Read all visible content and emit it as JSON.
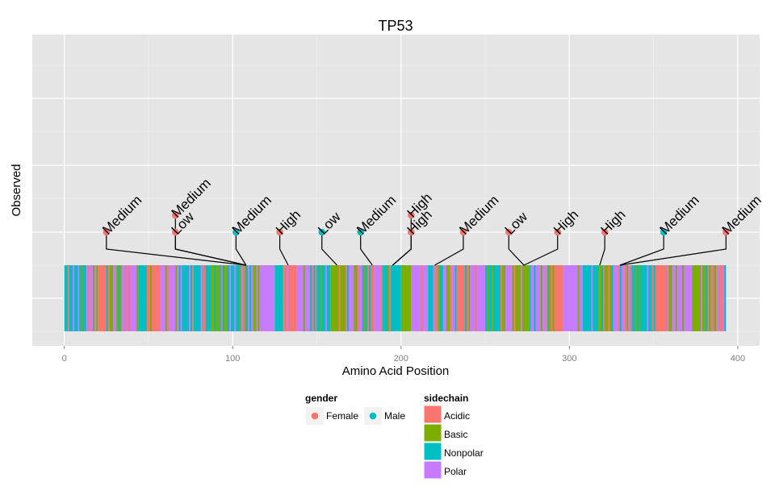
{
  "chart_data": {
    "type": "scatter",
    "title": "TP53",
    "xlabel": "Amino Acid Position",
    "ylabel": "Observed",
    "xlim": [
      -19,
      413
    ],
    "x_ticks": [
      0,
      100,
      200,
      300,
      400
    ],
    "grid": true,
    "protein_length": 393,
    "track_segments": [
      {
        "start": 0,
        "end": 12,
        "sidechain": "Nonpolar"
      },
      {
        "start": 12,
        "end": 20,
        "sidechain": "Polar"
      },
      {
        "start": 20,
        "end": 27,
        "sidechain": "Acidic"
      },
      {
        "start": 27,
        "end": 34,
        "sidechain": "Basic"
      },
      {
        "start": 34,
        "end": 44,
        "sidechain": "Polar"
      },
      {
        "start": 44,
        "end": 50,
        "sidechain": "Nonpolar"
      },
      {
        "start": 50,
        "end": 57,
        "sidechain": "Acidic"
      },
      {
        "start": 57,
        "end": 68,
        "sidechain": "Polar"
      },
      {
        "start": 68,
        "end": 107,
        "sidechain": "Nonpolar"
      },
      {
        "start": 107,
        "end": 112,
        "sidechain": "Polar"
      },
      {
        "start": 112,
        "end": 116,
        "sidechain": "Basic"
      },
      {
        "start": 116,
        "end": 125,
        "sidechain": "Polar"
      },
      {
        "start": 125,
        "end": 130,
        "sidechain": "Nonpolar"
      },
      {
        "start": 130,
        "end": 138,
        "sidechain": "Acidic"
      },
      {
        "start": 138,
        "end": 148,
        "sidechain": "Polar"
      },
      {
        "start": 148,
        "end": 158,
        "sidechain": "Nonpolar"
      },
      {
        "start": 158,
        "end": 168,
        "sidechain": "Basic"
      },
      {
        "start": 168,
        "end": 178,
        "sidechain": "Polar"
      },
      {
        "start": 178,
        "end": 184,
        "sidechain": "Acidic"
      },
      {
        "start": 184,
        "end": 190,
        "sidechain": "Polar"
      },
      {
        "start": 190,
        "end": 200,
        "sidechain": "Nonpolar"
      },
      {
        "start": 200,
        "end": 206,
        "sidechain": "Basic"
      },
      {
        "start": 206,
        "end": 216,
        "sidechain": "Polar"
      },
      {
        "start": 216,
        "end": 225,
        "sidechain": "Nonpolar"
      },
      {
        "start": 225,
        "end": 233,
        "sidechain": "Polar"
      },
      {
        "start": 233,
        "end": 240,
        "sidechain": "Acidic"
      },
      {
        "start": 240,
        "end": 250,
        "sidechain": "Polar"
      },
      {
        "start": 250,
        "end": 260,
        "sidechain": "Nonpolar"
      },
      {
        "start": 260,
        "end": 268,
        "sidechain": "Polar"
      },
      {
        "start": 268,
        "end": 276,
        "sidechain": "Basic"
      },
      {
        "start": 276,
        "end": 286,
        "sidechain": "Polar"
      },
      {
        "start": 286,
        "end": 296,
        "sidechain": "Acidic"
      },
      {
        "start": 296,
        "end": 308,
        "sidechain": "Polar"
      },
      {
        "start": 308,
        "end": 318,
        "sidechain": "Nonpolar"
      },
      {
        "start": 318,
        "end": 326,
        "sidechain": "Basic"
      },
      {
        "start": 326,
        "end": 338,
        "sidechain": "Polar"
      },
      {
        "start": 338,
        "end": 350,
        "sidechain": "Nonpolar"
      },
      {
        "start": 350,
        "end": 360,
        "sidechain": "Acidic"
      },
      {
        "start": 360,
        "end": 372,
        "sidechain": "Polar"
      },
      {
        "start": 372,
        "end": 380,
        "sidechain": "Basic"
      },
      {
        "start": 380,
        "end": 388,
        "sidechain": "Nonpolar"
      },
      {
        "start": 388,
        "end": 393,
        "sidechain": "Polar"
      }
    ],
    "points": [
      {
        "x": 25,
        "level": 1,
        "connect_x": 108,
        "gender": "Female",
        "label": "Medium"
      },
      {
        "x": 66,
        "level": 1,
        "connect_x": 108,
        "gender": "Female",
        "label": "Low"
      },
      {
        "x": 66,
        "level": 2,
        "connect_x": 108,
        "gender": "Female",
        "label": "Medium"
      },
      {
        "x": 102,
        "level": 1,
        "connect_x": 108,
        "gender": "Male",
        "label": "Medium"
      },
      {
        "x": 128,
        "level": 1,
        "connect_x": 133,
        "gender": "Female",
        "label": "High"
      },
      {
        "x": 153,
        "level": 1,
        "connect_x": 162,
        "gender": "Male",
        "label": "Low"
      },
      {
        "x": 176,
        "level": 1,
        "connect_x": 183,
        "gender": "Male",
        "label": "Medium"
      },
      {
        "x": 206,
        "level": 1,
        "connect_x": 195,
        "gender": "Female",
        "label": "High"
      },
      {
        "x": 206,
        "level": 2,
        "connect_x": 195,
        "gender": "Female",
        "label": "High"
      },
      {
        "x": 237,
        "level": 1,
        "connect_x": 220,
        "gender": "Female",
        "label": "Medium"
      },
      {
        "x": 264,
        "level": 1,
        "connect_x": 273,
        "gender": "Female",
        "label": "Low"
      },
      {
        "x": 293,
        "level": 1,
        "connect_x": 273,
        "gender": "Female",
        "label": "High"
      },
      {
        "x": 321,
        "level": 1,
        "connect_x": 318,
        "gender": "Female",
        "label": "High"
      },
      {
        "x": 356,
        "level": 1,
        "connect_x": 330,
        "gender": "Male",
        "label": "Medium"
      },
      {
        "x": 393,
        "level": 1,
        "connect_x": 330,
        "gender": "Female",
        "label": "Medium"
      }
    ]
  },
  "legend": {
    "gender": {
      "title": "gender",
      "items": [
        {
          "label": "Female",
          "color": "#F8766D"
        },
        {
          "label": "Male",
          "color": "#00BFC4"
        }
      ]
    },
    "sidechain": {
      "title": "sidechain",
      "items": [
        {
          "label": "Acidic",
          "color": "#F8766D"
        },
        {
          "label": "Basic",
          "color": "#7CAE00"
        },
        {
          "label": "Nonpolar",
          "color": "#00BFC4"
        },
        {
          "label": "Polar",
          "color": "#C77CFF"
        }
      ]
    }
  },
  "colors": {
    "panel_bg": "#E5E5E5",
    "grid": "#FFFFFF"
  }
}
